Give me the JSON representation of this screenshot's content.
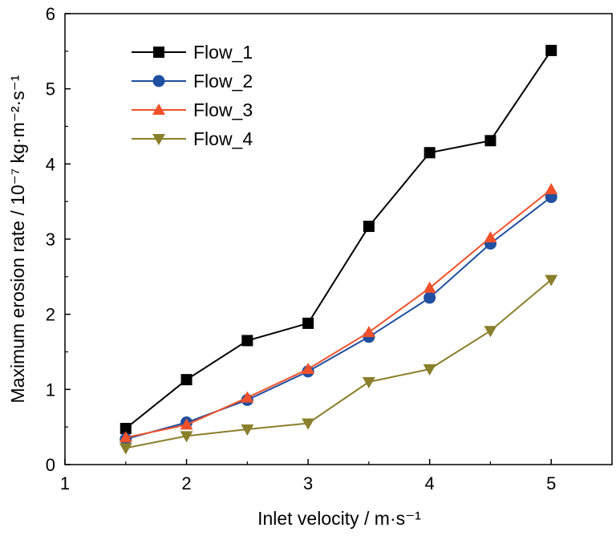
{
  "chart_data": {
    "type": "line",
    "x": [
      1.5,
      2,
      2.5,
      3,
      3.5,
      4,
      4.5,
      5
    ],
    "series": [
      {
        "name": "Flow_1",
        "values": [
          0.48,
          1.13,
          1.65,
          1.88,
          3.17,
          4.15,
          4.31,
          5.51
        ],
        "color": "#000000",
        "marker": "square"
      },
      {
        "name": "Flow_2",
        "values": [
          0.34,
          0.56,
          0.86,
          1.24,
          1.7,
          2.22,
          2.94,
          3.56
        ],
        "color": "#1f4fa0",
        "marker": "circle"
      },
      {
        "name": "Flow_3",
        "values": [
          0.36,
          0.53,
          0.89,
          1.27,
          1.76,
          2.35,
          3.02,
          3.66
        ],
        "color": "#f0512a",
        "marker": "triangle-up"
      },
      {
        "name": "Flow_4",
        "values": [
          0.22,
          0.38,
          0.47,
          0.55,
          1.1,
          1.27,
          1.78,
          2.46
        ],
        "color": "#8a7f2a",
        "marker": "triangle-down"
      }
    ],
    "xlim": [
      1,
      5.5
    ],
    "ylim": [
      0,
      6
    ],
    "xticks": [
      "1",
      "2",
      "3",
      "4",
      "5"
    ],
    "yticks": [
      "0",
      "1",
      "2",
      "3",
      "4",
      "5",
      "6"
    ],
    "xlabel": "Inlet velocity / m·s⁻¹",
    "ylabel": "Maximum erosion rate / 10⁻⁷ kg·m⁻²·s⁻¹",
    "grid": false,
    "legend_position": "top-left"
  }
}
